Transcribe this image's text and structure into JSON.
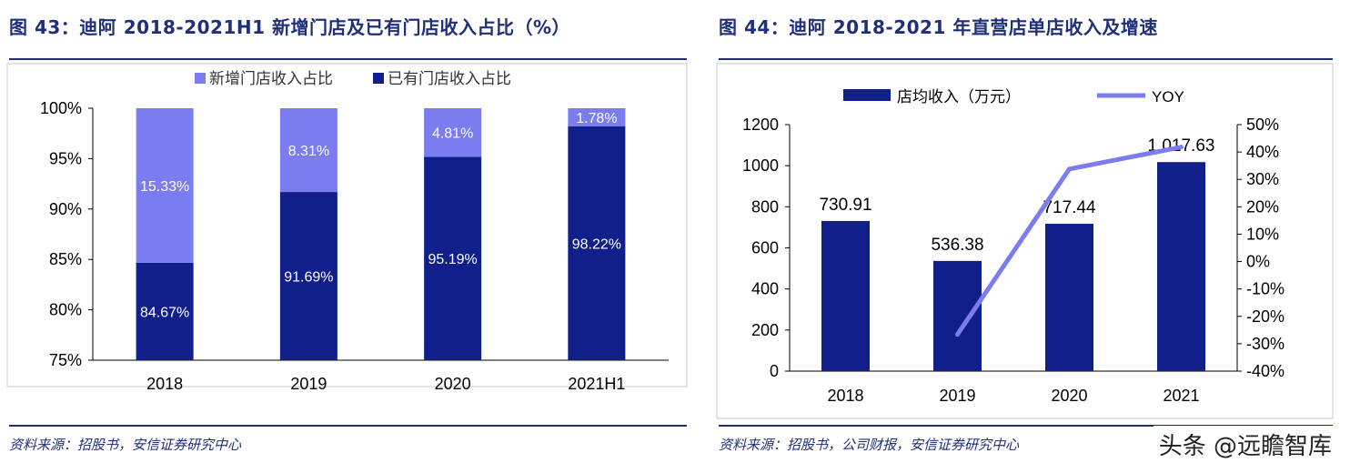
{
  "left": {
    "title": "图 43：迪阿 2018-2021H1 新增门店及已有门店收入占比（%）",
    "source": "资料来源：招股书，安信证券研究中心",
    "chart_data": {
      "type": "bar",
      "stacked": true,
      "categories": [
        "2018",
        "2019",
        "2020",
        "2021H1"
      ],
      "series": [
        {
          "name": "新增门店收入占比",
          "values": [
            15.33,
            8.31,
            4.81,
            1.78
          ],
          "labels": [
            "15.33%",
            "8.31%",
            "4.81%",
            "1.78%"
          ],
          "color": "#7b7cf0"
        },
        {
          "name": "已有门店收入占比",
          "values": [
            84.67,
            91.69,
            95.19,
            98.22
          ],
          "labels": [
            "84.67%",
            "91.69%",
            "95.19%",
            "98.22%"
          ],
          "color": "#111f8a"
        }
      ],
      "ylim": [
        75,
        100
      ],
      "yticks": [
        "75%",
        "80%",
        "85%",
        "90%",
        "95%",
        "100%"
      ],
      "legend": "top",
      "grid": false
    }
  },
  "right": {
    "title": "图 44：迪阿 2018-2021 年直营店单店收入及增速",
    "source": "资料来源：招股书，公司财报，安信证券研究中心",
    "chart_data": {
      "type": "bar",
      "categories": [
        "2018",
        "2019",
        "2020",
        "2021"
      ],
      "series": [
        {
          "name": "店均收入（万元）",
          "values": [
            730.91,
            536.38,
            717.44,
            1017.63
          ],
          "labels": [
            "730.91",
            "536.38",
            "717.44",
            "1,017.63"
          ],
          "color": "#111f8a",
          "axis": "left"
        },
        {
          "name": "YOY",
          "type": "line",
          "values": [
            null,
            -26.6,
            33.8,
            41.8
          ],
          "color": "#7b7cf0",
          "axis": "right"
        }
      ],
      "ylim": [
        0,
        1200
      ],
      "yticks": [
        "0",
        "200",
        "400",
        "600",
        "800",
        "1000",
        "1200"
      ],
      "y2lim": [
        -40,
        50
      ],
      "y2ticks": [
        "-40%",
        "-30%",
        "-20%",
        "-10%",
        "0%",
        "10%",
        "20%",
        "30%",
        "40%",
        "50%"
      ],
      "legend": "top",
      "grid": false
    }
  },
  "watermark": "头条 @远瞻智库"
}
